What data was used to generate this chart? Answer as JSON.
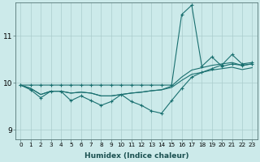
{
  "xlabel": "Humidex (Indice chaleur)",
  "bg_color": "#cceaea",
  "grid_color": "#aacccc",
  "line_color": "#1a7070",
  "xlim": [
    -0.5,
    23.5
  ],
  "ylim": [
    8.8,
    11.7
  ],
  "yticks": [
    9,
    10,
    11
  ],
  "xticks": [
    0,
    1,
    2,
    3,
    4,
    5,
    6,
    7,
    8,
    9,
    10,
    11,
    12,
    13,
    14,
    15,
    16,
    17,
    18,
    19,
    20,
    21,
    22,
    23
  ],
  "series": [
    {
      "x": [
        0,
        1,
        2,
        3,
        4,
        5,
        6,
        7,
        8,
        9,
        10,
        11,
        12,
        13,
        14,
        15,
        16,
        17,
        18,
        19,
        20,
        21,
        22,
        23
      ],
      "y": [
        9.95,
        9.88,
        9.75,
        9.82,
        9.82,
        9.78,
        9.8,
        9.78,
        9.72,
        9.72,
        9.75,
        9.78,
        9.8,
        9.83,
        9.85,
        9.9,
        10.05,
        10.18,
        10.22,
        10.27,
        10.3,
        10.33,
        10.28,
        10.32
      ],
      "marker": false
    },
    {
      "x": [
        0,
        1,
        2,
        3,
        4,
        5,
        6,
        7,
        8,
        9,
        10,
        11,
        12,
        13,
        14,
        15,
        16,
        17,
        18,
        19,
        20,
        21,
        22,
        23
      ],
      "y": [
        9.95,
        9.88,
        9.75,
        9.82,
        9.82,
        9.78,
        9.8,
        9.78,
        9.72,
        9.72,
        9.75,
        9.78,
        9.8,
        9.83,
        9.85,
        9.93,
        10.12,
        10.27,
        10.32,
        10.37,
        10.4,
        10.43,
        10.37,
        10.4
      ],
      "marker": false
    },
    {
      "x": [
        0,
        1,
        2,
        3,
        4,
        5,
        6,
        7,
        8,
        9,
        10,
        11,
        12,
        13,
        14,
        15,
        16,
        17,
        18,
        19,
        20,
        21,
        22,
        23
      ],
      "y": [
        9.95,
        9.95,
        9.95,
        9.95,
        9.95,
        9.95,
        9.95,
        9.95,
        9.95,
        9.95,
        9.95,
        9.95,
        9.95,
        9.95,
        9.95,
        9.95,
        11.45,
        11.65,
        10.35,
        10.55,
        10.35,
        10.4,
        10.37,
        10.4
      ],
      "marker": true
    },
    {
      "x": [
        0,
        1,
        2,
        3,
        4,
        5,
        6,
        7,
        8,
        9,
        10,
        11,
        12,
        13,
        14,
        15,
        16,
        17,
        18,
        19,
        20,
        21,
        22,
        23
      ],
      "y": [
        9.95,
        9.85,
        9.68,
        9.82,
        9.82,
        9.62,
        9.72,
        9.62,
        9.52,
        9.6,
        9.75,
        9.6,
        9.52,
        9.4,
        9.35,
        9.62,
        9.88,
        10.12,
        10.22,
        10.3,
        10.38,
        10.6,
        10.4,
        10.43
      ],
      "marker": true
    }
  ]
}
